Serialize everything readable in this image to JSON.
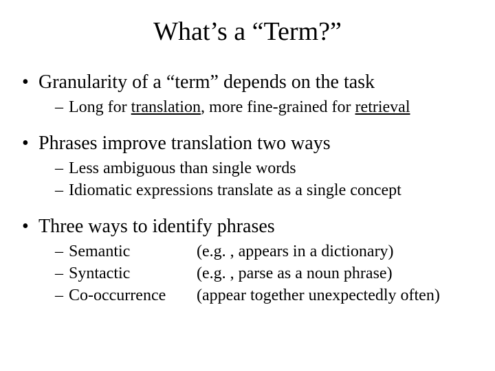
{
  "title": "What’s a “Term?”",
  "b1": {
    "text_pre": "Granularity of a “term” depends on the task",
    "sub1_a": "Long for ",
    "sub1_u1": "translation",
    "sub1_b": ", more fine-grained for ",
    "sub1_u2": "retrieval"
  },
  "b2": {
    "text": "Phrases improve translation two ways",
    "sub1": "Less ambiguous than single words",
    "sub2": "Idiomatic expressions translate as a single concept"
  },
  "b3": {
    "text": "Three ways to identify phrases",
    "r1a": "Semantic",
    "r1b": "(e.g. , appears in a dictionary)",
    "r2a": "Syntactic",
    "r2b": "(e.g. , parse as a noun phrase)",
    "r3a": "Co-occurrence",
    "r3b": "(appear together unexpectedly often)"
  },
  "style": {
    "background": "#ffffff",
    "text_color": "#000000",
    "title_fontsize": 38,
    "level1_fontsize": 28,
    "level2_fontsize": 24,
    "font_family": "Times New Roman"
  }
}
